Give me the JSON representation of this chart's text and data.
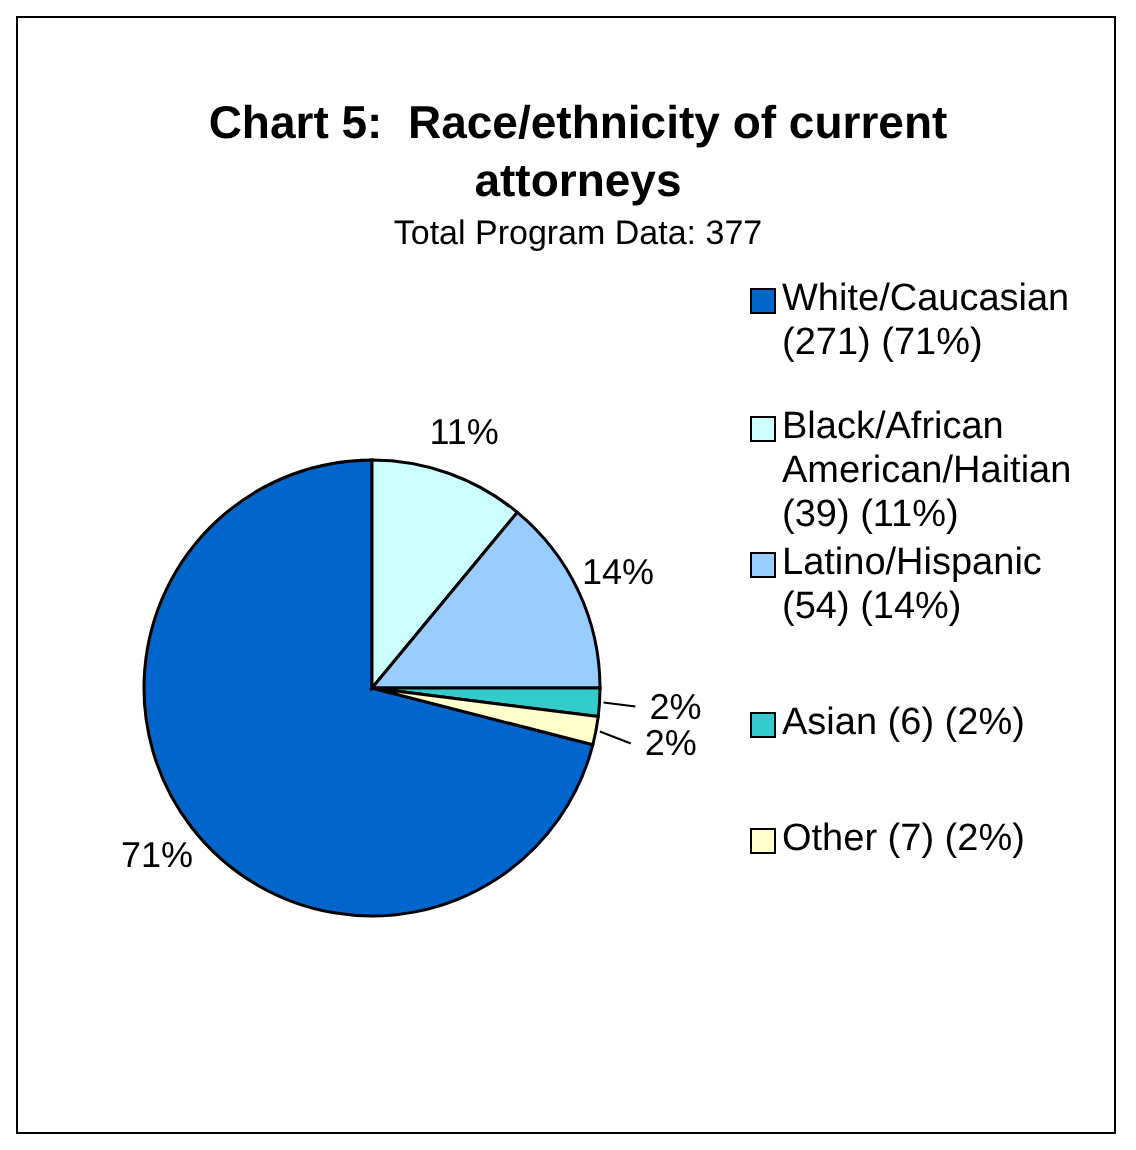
{
  "chart_data": {
    "type": "pie",
    "title": "Chart 5:  Race/ethnicity of current attorneys",
    "subtitle": "Total Program Data: 377",
    "categories": [
      "White/Caucasian (271) (71%)",
      "Black/African American/Haitian (39) (11%)",
      "Latino/Hispanic (54) (14%)",
      "Asian (6) (2%)",
      "Other (7) (2%)"
    ],
    "values": [
      71,
      11,
      14,
      2,
      2
    ],
    "colors": [
      "#0066cc",
      "#ccffff",
      "#99ccff",
      "#33cccc",
      "#ffffcc"
    ],
    "value_labels": [
      "71%",
      "11%",
      "14%",
      "2%",
      "2%"
    ],
    "legend": "right"
  }
}
